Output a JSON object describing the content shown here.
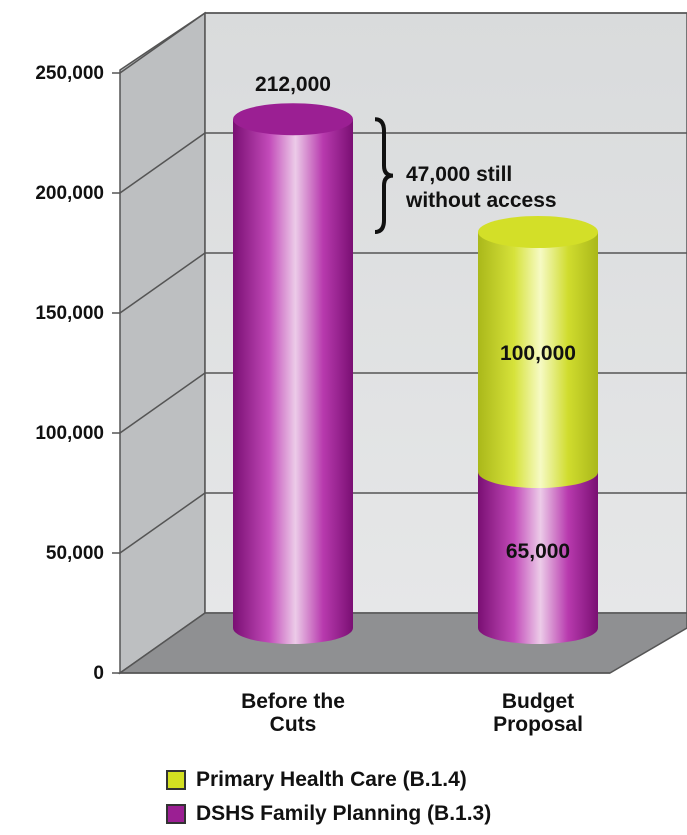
{
  "chart_data": {
    "type": "bar",
    "stacked": true,
    "categories": [
      "Before the Cuts",
      "Budget Proposal"
    ],
    "category_lines": [
      [
        "Before the",
        "Cuts"
      ],
      [
        "Budget",
        "Proposal"
      ]
    ],
    "series": [
      {
        "name": "DSHS Family Planning (B.1.3)",
        "values": [
          212000,
          65000
        ],
        "color": "#9b1f93"
      },
      {
        "name": "Primary Health Care (B.1.4)",
        "values": [
          0,
          100000
        ],
        "color": "#d4e021"
      }
    ],
    "data_labels": [
      "212,000",
      "100,000",
      "65,000"
    ],
    "annotation": [
      "47,000 still",
      "without access"
    ],
    "yticks": [
      "0",
      "50,000",
      "100,000",
      "150,000",
      "200,000",
      "250,000"
    ],
    "ylim": [
      0,
      250000
    ],
    "grid": true,
    "legend_position": "bottom"
  },
  "legend": [
    {
      "label": "Primary Health Care (B.1.4)",
      "color": "#d4e021"
    },
    {
      "label": "DSHS Family Planning (B.1.3)",
      "color": "#9b1f93"
    }
  ]
}
